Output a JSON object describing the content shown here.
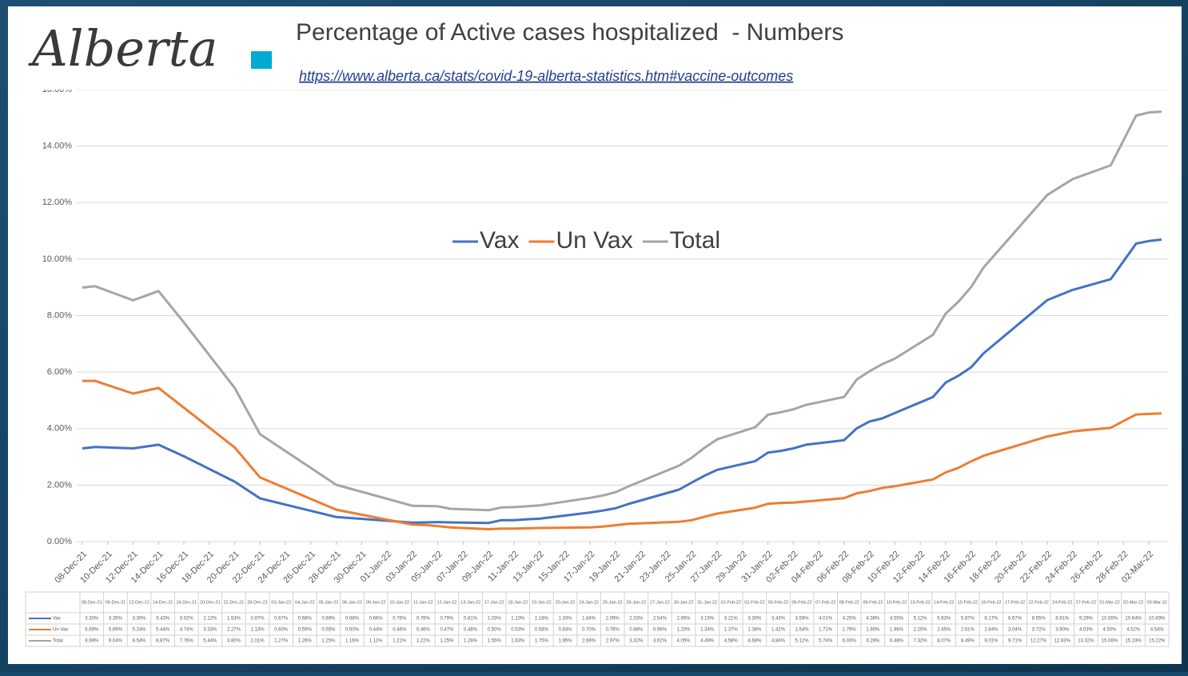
{
  "chart_data": {
    "type": "line",
    "logo": "Alberta",
    "title": "Percentage of Active cases hospitalized  - Numbers",
    "subtitle": "https://www.alberta.ca/stats/covid-19-alberta-statistics.htm#vaccine-outcomes",
    "x": [
      "08-Dec-21",
      "09-Dec-21",
      "12-Dec-21",
      "14-Dec-21",
      "16-Dec-21",
      "20-Dec-21",
      "22-Dec-21",
      "28-Dec-21",
      "03-Jan-22",
      "04-Jan-22",
      "05-Jan-22",
      "06-Jan-22",
      "09-Jan-22",
      "10-Jan-22",
      "11-Jan-22",
      "12-Jan-22",
      "13-Jan-22",
      "17-Jan-22",
      "18-Jan-22",
      "19-Jan-22",
      "20-Jan-22",
      "24-Jan-22",
      "25-Jan-22",
      "26-Jan-22",
      "27-Jan-22",
      "30-Jan-22",
      "31-Jan-22",
      "01-Feb-22",
      "02-Feb-22",
      "03-Feb-22",
      "06-Feb-22",
      "07-Feb-22",
      "08-Feb-22",
      "09-Feb-22",
      "10-Feb-22",
      "13-Feb-22",
      "14-Feb-22",
      "15-Feb-22",
      "16-Feb-22",
      "17-Feb-22",
      "22-Feb-22",
      "24-Feb-22",
      "27-Feb-22",
      "01-Mar-22",
      "02-Mar-22",
      "03-Mar-22"
    ],
    "series": [
      {
        "name": "Vax",
        "color": "#4472c4",
        "values": [
          3.3,
          3.35,
          3.3,
          3.43,
          3.02,
          2.12,
          1.53,
          0.87,
          0.67,
          0.68,
          0.69,
          0.68,
          0.66,
          0.76,
          0.76,
          0.79,
          0.81,
          1.03,
          1.1,
          1.18,
          1.33,
          1.84,
          2.09,
          2.33,
          2.54,
          2.85,
          3.15,
          3.21,
          3.3,
          3.43,
          3.59,
          4.01,
          4.25,
          4.36,
          4.55,
          5.12,
          5.63,
          5.87,
          6.17,
          6.67,
          8.55,
          8.91,
          9.29,
          10.55,
          10.64,
          10.69
        ],
        "value_labels": [
          "3.30%",
          "3.35%",
          "3.30%",
          "3.43%",
          "3.02%",
          "2.12%",
          "1.53%",
          "0.87%",
          "0.67%",
          "0.68%",
          "0.69%",
          "0.68%",
          "0.66%",
          "0.76%",
          "0.76%",
          "0.79%",
          "0.81%",
          "1.03%",
          "1.10%",
          "1.18%",
          "1.33%",
          "1.84%",
          "2.09%",
          "2.33%",
          "2.54%",
          "2.85%",
          "3.15%",
          "3.21%",
          "3.30%",
          "3.43%",
          "3.59%",
          "4.01%",
          "4.25%",
          "4.36%",
          "4.55%",
          "5.12%",
          "5.63%",
          "5.87%",
          "6.17%",
          "6.67%",
          "8.55%",
          "8.91%",
          "9.29%",
          "10.55%",
          "10.64%",
          "10.69%"
        ]
      },
      {
        "name": "Un Vax",
        "color": "#ed7d31",
        "values": [
          5.69,
          5.69,
          5.24,
          5.44,
          4.74,
          3.33,
          2.27,
          1.13,
          0.6,
          0.59,
          0.55,
          0.5,
          0.44,
          0.46,
          0.46,
          0.47,
          0.48,
          0.5,
          0.53,
          0.58,
          0.63,
          0.7,
          0.76,
          0.88,
          0.99,
          1.2,
          1.34,
          1.37,
          1.38,
          1.42,
          1.54,
          1.71,
          1.79,
          1.9,
          1.96,
          2.2,
          2.45,
          2.61,
          2.84,
          3.04,
          3.72,
          3.9,
          4.03,
          4.5,
          4.52,
          4.54
        ],
        "value_labels": [
          "5.69%",
          "5.69%",
          "5.24%",
          "5.44%",
          "4.74%",
          "3.33%",
          "2.27%",
          "1.13%",
          "0.60%",
          "0.59%",
          "0.55%",
          "0.50%",
          "0.44%",
          "0.46%",
          "0.46%",
          "0.47%",
          "0.48%",
          "0.50%",
          "0.53%",
          "0.58%",
          "0.63%",
          "0.70%",
          "0.76%",
          "0.88%",
          "0.99%",
          "1.20%",
          "1.34%",
          "1.37%",
          "1.38%",
          "1.42%",
          "1.54%",
          "1.71%",
          "1.79%",
          "1.90%",
          "1.96%",
          "2.20%",
          "2.45%",
          "2.61%",
          "2.84%",
          "3.04%",
          "3.72%",
          "3.90%",
          "4.03%",
          "4.50%",
          "4.52%",
          "4.54%"
        ]
      },
      {
        "name": "Total",
        "color": "#a5a5a5",
        "values": [
          8.99,
          9.04,
          8.54,
          8.87,
          7.76,
          5.44,
          3.8,
          2.01,
          1.27,
          1.26,
          1.25,
          1.16,
          1.11,
          1.21,
          1.22,
          1.25,
          1.28,
          1.55,
          1.63,
          1.75,
          1.95,
          2.69,
          2.97,
          3.32,
          3.62,
          4.05,
          4.49,
          4.58,
          4.68,
          4.84,
          5.12,
          5.74,
          6.03,
          6.28,
          6.48,
          7.32,
          8.07,
          8.49,
          9.01,
          9.71,
          12.27,
          12.83,
          13.32,
          15.08,
          15.19,
          15.22
        ],
        "value_labels": [
          "8.99%",
          "9.04%",
          "8.54%",
          "8.87%",
          "7.76%",
          "5.44%",
          "3.80%",
          "2.01%",
          "1.27%",
          "1.26%",
          "1.25%",
          "1.16%",
          "1.11%",
          "1.21%",
          "1.22%",
          "1.25%",
          "1.28%",
          "1.55%",
          "1.63%",
          "1.75%",
          "1.95%",
          "2.69%",
          "2.97%",
          "3.32%",
          "3.62%",
          "4.05%",
          "4.49%",
          "4.58%",
          "4.68%",
          "4.84%",
          "5.12%",
          "5.74%",
          "6.03%",
          "6.28%",
          "6.48%",
          "7.32%",
          "8.07%",
          "8.49%",
          "9.01%",
          "9.71%",
          "12.27%",
          "12.83%",
          "13.32%",
          "15.08%",
          "15.19%",
          "15.22%"
        ]
      }
    ],
    "xticks": [
      "08-Dec-21",
      "10-Dec-21",
      "12-Dec-21",
      "14-Dec-21",
      "16-Dec-21",
      "18-Dec-21",
      "20-Dec-21",
      "22-Dec-21",
      "24-Dec-21",
      "26-Dec-21",
      "28-Dec-21",
      "30-Dec-21",
      "01-Jan-22",
      "03-Jan-22",
      "05-Jan-22",
      "07-Jan-22",
      "09-Jan-22",
      "11-Jan-22",
      "13-Jan-22",
      "15-Jan-22",
      "17-Jan-22",
      "19-Jan-22",
      "21-Jan-22",
      "23-Jan-22",
      "25-Jan-22",
      "27-Jan-22",
      "29-Jan-22",
      "31-Jan-22",
      "02-Feb-22",
      "04-Feb-22",
      "06-Feb-22",
      "08-Feb-22",
      "10-Feb-22",
      "12-Feb-22",
      "14-Feb-22",
      "16-Feb-22",
      "18-Feb-22",
      "20-Feb-22",
      "22-Feb-22",
      "24-Feb-22",
      "26-Feb-22",
      "28-Feb-22",
      "02-Mar-22"
    ],
    "ylim": [
      0,
      16
    ],
    "yticks": [
      {
        "value": 0,
        "label": "0.00%"
      },
      {
        "value": 2,
        "label": "2.00%"
      },
      {
        "value": 4,
        "label": "4.00%"
      },
      {
        "value": 6,
        "label": "6.00%"
      },
      {
        "value": 8,
        "label": "8.00%"
      },
      {
        "value": 10,
        "label": "10.00%"
      },
      {
        "value": 12,
        "label": "12.00%"
      },
      {
        "value": 14,
        "label": "14.00%"
      },
      {
        "value": 16,
        "label": "16.00%"
      }
    ],
    "grid": true,
    "legend": "top"
  }
}
